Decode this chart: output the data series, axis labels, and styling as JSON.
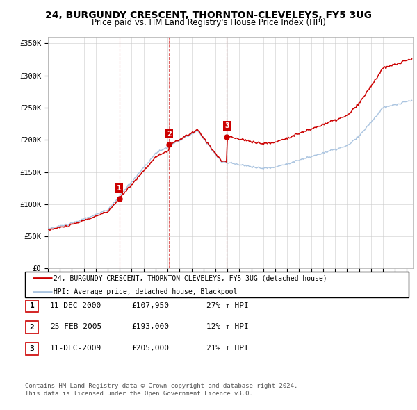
{
  "title": "24, BURGUNDY CRESCENT, THORNTON-CLEVELEYS, FY5 3UG",
  "subtitle": "Price paid vs. HM Land Registry's House Price Index (HPI)",
  "sale_times": [
    2000.958,
    2005.125,
    2009.958
  ],
  "sale_prices": [
    107950,
    193000,
    205000
  ],
  "sale_labels": [
    "1",
    "2",
    "3"
  ],
  "sale_color": "#cc0000",
  "hpi_color": "#aac4e0",
  "vline_color": "#cc0000",
  "ylim": [
    0,
    360000
  ],
  "yticks": [
    0,
    50000,
    100000,
    150000,
    200000,
    250000,
    300000,
    350000
  ],
  "ytick_labels": [
    "£0",
    "£50K",
    "£100K",
    "£150K",
    "£200K",
    "£250K",
    "£300K",
    "£350K"
  ],
  "xlim_start": 1995,
  "xlim_end": 2025.5,
  "legend_line1": "24, BURGUNDY CRESCENT, THORNTON-CLEVELEYS, FY5 3UG (detached house)",
  "legend_line2": "HPI: Average price, detached house, Blackpool",
  "table_rows": [
    [
      "1",
      "11-DEC-2000",
      "£107,950",
      "27% ↑ HPI"
    ],
    [
      "2",
      "25-FEB-2005",
      "£193,000",
      "12% ↑ HPI"
    ],
    [
      "3",
      "11-DEC-2009",
      "£205,000",
      "21% ↑ HPI"
    ]
  ],
  "footnote1": "Contains HM Land Registry data © Crown copyright and database right 2024.",
  "footnote2": "This data is licensed under the Open Government Licence v3.0."
}
